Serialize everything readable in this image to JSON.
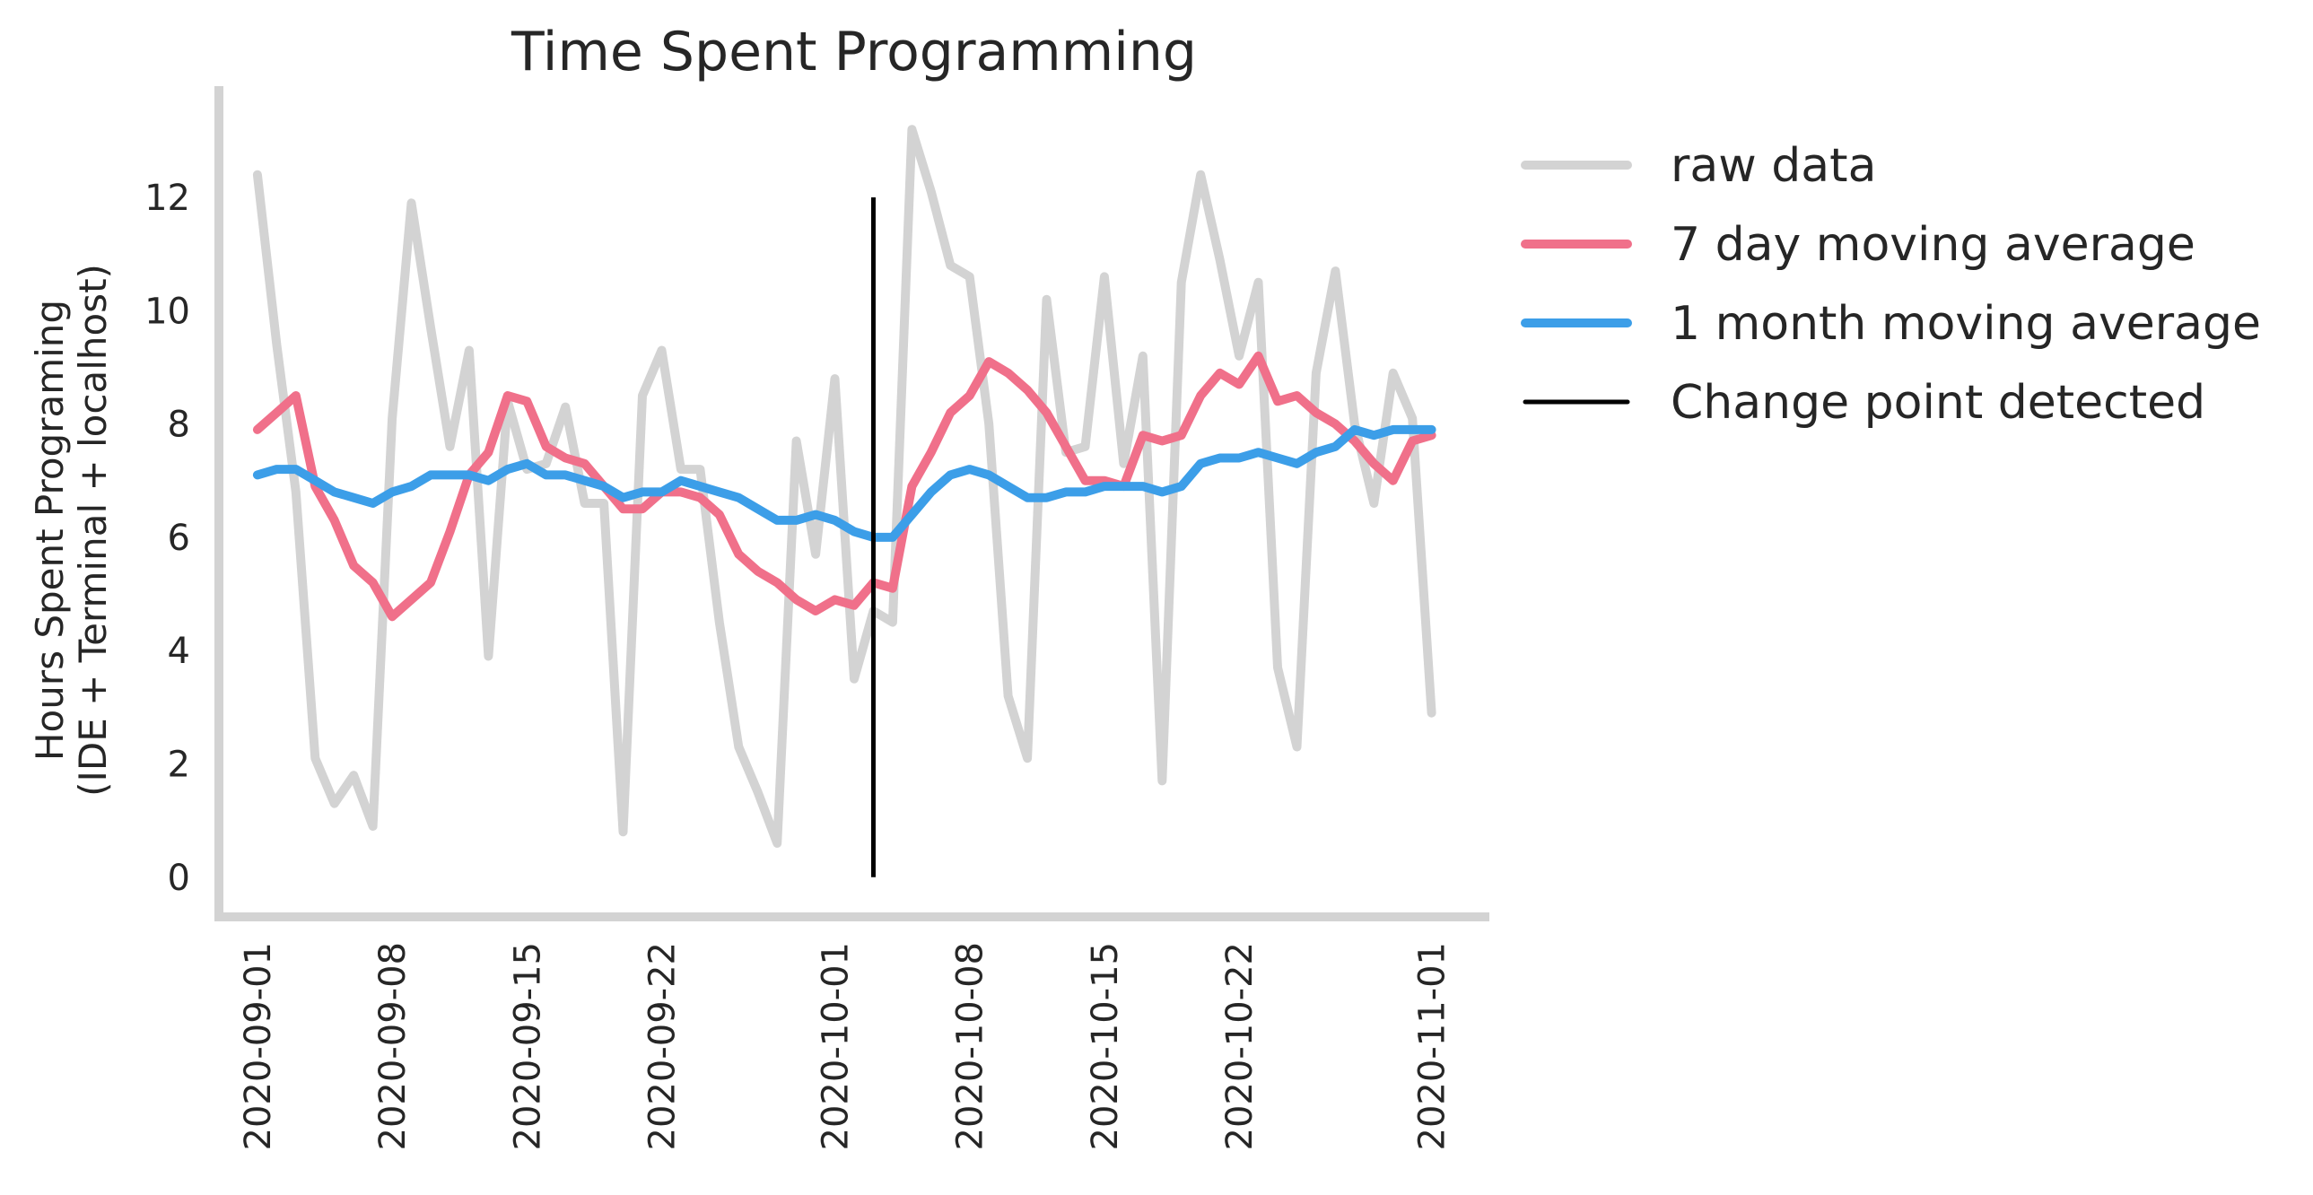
{
  "chart_data": {
    "type": "line",
    "title": "Time Spent Programming",
    "ylabel_line1": "Hours Spent Programing",
    "ylabel_line2": "(IDE + Terminal + localhost)",
    "xlabel": "",
    "ylim": [
      -0.7,
      13.9
    ],
    "x_range": [
      "2020-08-30",
      "2020-11-04"
    ],
    "y_ticks": [
      0,
      2,
      4,
      6,
      8,
      10,
      12
    ],
    "x_ticks": [
      "2020-09-01",
      "2020-09-08",
      "2020-09-15",
      "2020-09-22",
      "2020-10-01",
      "2020-10-08",
      "2020-10-15",
      "2020-10-22",
      "2020-11-01"
    ],
    "grid": false,
    "legend_position": "outside-right",
    "x": [
      "2020-09-01",
      "2020-09-02",
      "2020-09-03",
      "2020-09-04",
      "2020-09-05",
      "2020-09-06",
      "2020-09-07",
      "2020-09-08",
      "2020-09-09",
      "2020-09-10",
      "2020-09-11",
      "2020-09-12",
      "2020-09-13",
      "2020-09-14",
      "2020-09-15",
      "2020-09-16",
      "2020-09-17",
      "2020-09-18",
      "2020-09-19",
      "2020-09-20",
      "2020-09-21",
      "2020-09-22",
      "2020-09-23",
      "2020-09-24",
      "2020-09-25",
      "2020-09-26",
      "2020-09-27",
      "2020-09-28",
      "2020-09-29",
      "2020-09-30",
      "2020-10-01",
      "2020-10-02",
      "2020-10-03",
      "2020-10-04",
      "2020-10-05",
      "2020-10-06",
      "2020-10-07",
      "2020-10-08",
      "2020-10-09",
      "2020-10-10",
      "2020-10-11",
      "2020-10-12",
      "2020-10-13",
      "2020-10-14",
      "2020-10-15",
      "2020-10-16",
      "2020-10-17",
      "2020-10-18",
      "2020-10-19",
      "2020-10-20",
      "2020-10-21",
      "2020-10-22",
      "2020-10-23",
      "2020-10-24",
      "2020-10-25",
      "2020-10-26",
      "2020-10-27",
      "2020-10-28",
      "2020-10-29",
      "2020-10-30",
      "2020-10-31",
      "2020-11-01"
    ],
    "series": [
      {
        "name": "raw data",
        "color": "#d3d3d3",
        "values": [
          12.4,
          9.4,
          6.8,
          2.1,
          1.3,
          1.8,
          0.9,
          8.1,
          11.9,
          9.7,
          7.6,
          9.3,
          3.9,
          8.4,
          7.2,
          7.3,
          8.3,
          6.6,
          6.6,
          0.8,
          8.5,
          9.3,
          7.2,
          7.2,
          4.5,
          2.3,
          1.5,
          0.6,
          7.7,
          5.7,
          8.8,
          3.5,
          4.7,
          4.5,
          13.2,
          12.1,
          10.8,
          10.6,
          8.0,
          3.2,
          2.1,
          10.2,
          7.5,
          7.6,
          10.6,
          7.3,
          9.2,
          1.7,
          10.5,
          12.4,
          10.9,
          9.2,
          10.5,
          3.7,
          2.3,
          8.9,
          10.7,
          8.0,
          6.6,
          8.9,
          8.1,
          2.9
        ]
      },
      {
        "name": "7 day moving average",
        "color": "#f0708a",
        "values": [
          7.9,
          8.2,
          8.5,
          6.9,
          6.3,
          5.5,
          5.2,
          4.6,
          4.9,
          5.2,
          6.1,
          7.1,
          7.5,
          8.5,
          8.4,
          7.6,
          7.4,
          7.3,
          6.9,
          6.5,
          6.5,
          6.8,
          6.8,
          6.7,
          6.4,
          5.7,
          5.4,
          5.2,
          4.9,
          4.7,
          4.9,
          4.8,
          5.2,
          5.1,
          6.9,
          7.5,
          8.2,
          8.5,
          9.1,
          8.9,
          8.6,
          8.2,
          7.6,
          7.0,
          7.0,
          6.9,
          7.8,
          7.7,
          7.8,
          8.5,
          8.9,
          8.7,
          9.2,
          8.4,
          8.5,
          8.2,
          8.0,
          7.7,
          7.3,
          7.0,
          7.7,
          7.8
        ]
      },
      {
        "name": "1 month moving average",
        "color": "#3c9ee8",
        "values": [
          7.1,
          7.2,
          7.2,
          7.0,
          6.8,
          6.7,
          6.6,
          6.8,
          6.9,
          7.1,
          7.1,
          7.1,
          7.0,
          7.2,
          7.3,
          7.1,
          7.1,
          7.0,
          6.9,
          6.7,
          6.8,
          6.8,
          7.0,
          6.9,
          6.8,
          6.7,
          6.5,
          6.3,
          6.3,
          6.4,
          6.3,
          6.1,
          6.0,
          6.0,
          6.4,
          6.8,
          7.1,
          7.2,
          7.1,
          6.9,
          6.7,
          6.7,
          6.8,
          6.8,
          6.9,
          6.9,
          6.9,
          6.8,
          6.9,
          7.3,
          7.4,
          7.4,
          7.5,
          7.4,
          7.3,
          7.5,
          7.6,
          7.9,
          7.8,
          7.9,
          7.9,
          7.9
        ]
      }
    ],
    "change_point": {
      "name": "Change point detected",
      "color": "#000000",
      "x": "2020-10-03",
      "y_from": 0,
      "y_to": 12
    },
    "axis_color": "#d3d3d3"
  }
}
